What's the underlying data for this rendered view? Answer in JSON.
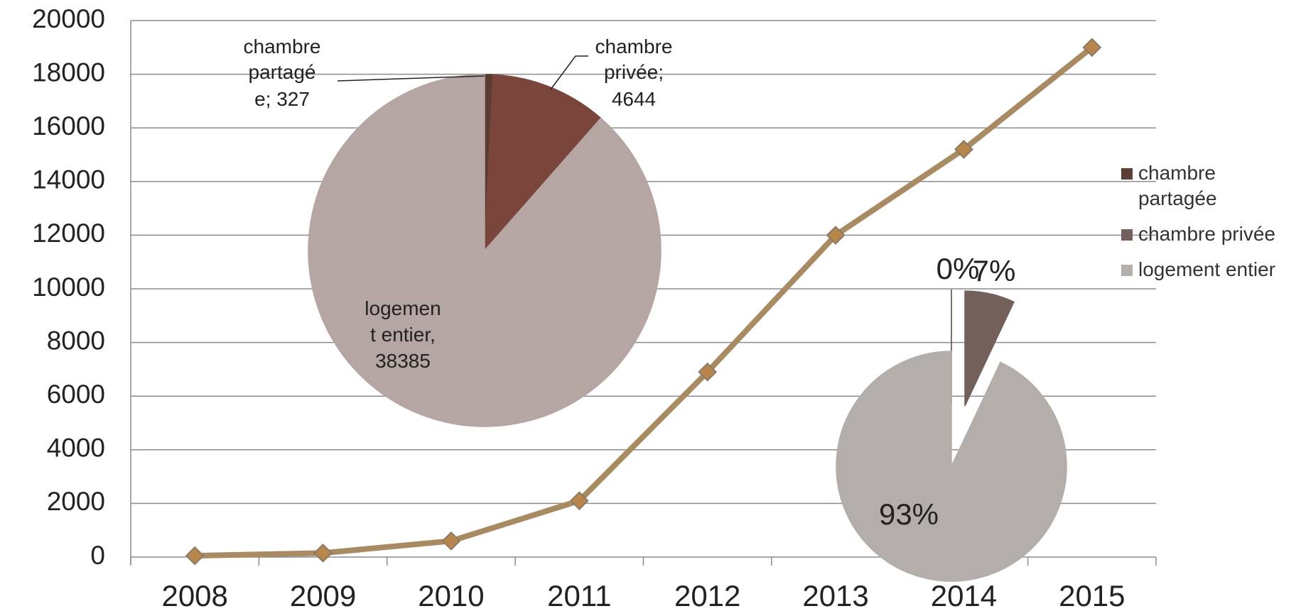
{
  "chart_data": [
    {
      "type": "line",
      "categories": [
        "2008",
        "2009",
        "2010",
        "2011",
        "2012",
        "2013",
        "2014",
        "2015"
      ],
      "values": [
        50,
        150,
        600,
        2100,
        6900,
        12000,
        15200,
        19000
      ],
      "color": "#a88a63",
      "marker_color": "#b8864d",
      "ylim": [
        0,
        20000
      ],
      "yticks": [
        0,
        2000,
        4000,
        6000,
        8000,
        10000,
        12000,
        14000,
        16000,
        18000,
        20000
      ],
      "grid": true
    },
    {
      "type": "pie",
      "values": [
        327,
        4644,
        38385
      ],
      "labels": [
        [
          "chambre",
          "partagé",
          "e; 327"
        ],
        [
          "chambre",
          "privée;",
          "4644"
        ],
        [
          "logemen",
          "t entier,",
          "38385"
        ]
      ],
      "colors": [
        "#5a3c34",
        "#7a463c",
        "#b5a5a3"
      ]
    },
    {
      "type": "pie",
      "categories": [
        "chambre partagée",
        "chambre privée",
        "logement entier"
      ],
      "values": [
        0,
        7,
        93
      ],
      "value_labels": [
        "0%",
        "7%",
        "93%"
      ],
      "colors": [
        "#5a4036",
        "#74605a",
        "#b3aea9"
      ],
      "exploded": true,
      "legend": "right"
    }
  ]
}
